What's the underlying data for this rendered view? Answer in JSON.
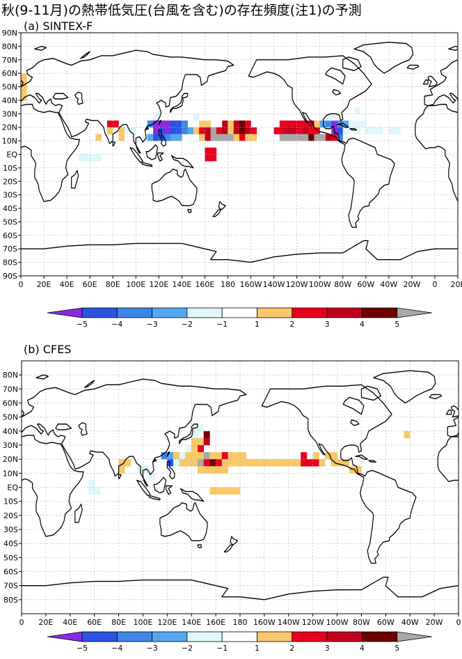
{
  "title": "秋(9-11月)の熱帯低気圧(台風を含む)の存在頻度(注1)の予測",
  "colors": {
    "-5": "#8a2be2",
    "-4": "#2b55e0",
    "-3": "#3f86e8",
    "-2": "#55a8f0",
    "-1": "#dff6fb",
    "1": "#f8c86a",
    "2": "#e8001e",
    "3": "#c0001a",
    "4": "#6e0000",
    "5": "#a8a8a8",
    "land": "#000000",
    "grid": "#b0b0b0"
  },
  "colorbar": {
    "labels": [
      "-5",
      "-4",
      "-3",
      "-2",
      "-1",
      "1",
      "2",
      "3",
      "4",
      "5"
    ],
    "boxes": [
      "-4",
      "-3",
      "-2",
      "-1",
      "0",
      "1",
      "2",
      "3",
      "4"
    ],
    "over": "5",
    "under": "-5"
  },
  "chart_data": [
    {
      "type": "heatmap",
      "panel_label": "(a) SINTEX-F",
      "xticks": [
        "0",
        "20E",
        "40E",
        "60E",
        "80E",
        "100E",
        "120E",
        "140E",
        "160E",
        "180",
        "160W",
        "140W",
        "120W",
        "100W",
        "80W",
        "60W",
        "40W",
        "20W",
        "0",
        "20E"
      ],
      "yticks": [
        "90N",
        "80N",
        "70N",
        "60N",
        "50N",
        "40N",
        "30N",
        "20N",
        "10N",
        "EQ",
        "10S",
        "20S",
        "30S",
        "40S",
        "50S",
        "60S",
        "70S",
        "80S",
        "90S"
      ],
      "xlim": [
        0,
        380
      ],
      "ylim": [
        -90,
        90
      ],
      "cell_deg": 5,
      "cells": [
        [
          0,
          55,
          1
        ],
        [
          0,
          50,
          1
        ],
        [
          0,
          45,
          1
        ],
        [
          0,
          40,
          1
        ],
        [
          75,
          20,
          2
        ],
        [
          80,
          20,
          2
        ],
        [
          75,
          15,
          1
        ],
        [
          85,
          15,
          1
        ],
        [
          65,
          10,
          1
        ],
        [
          85,
          10,
          1
        ],
        [
          90,
          15,
          -1
        ],
        [
          95,
          15,
          -1
        ],
        [
          115,
          25,
          -1
        ],
        [
          110,
          20,
          -3
        ],
        [
          115,
          20,
          -5
        ],
        [
          120,
          20,
          -5
        ],
        [
          125,
          20,
          -5
        ],
        [
          130,
          20,
          -4
        ],
        [
          135,
          20,
          -4
        ],
        [
          140,
          20,
          -3
        ],
        [
          115,
          15,
          -5
        ],
        [
          120,
          15,
          -4
        ],
        [
          125,
          15,
          -5
        ],
        [
          130,
          15,
          -4
        ],
        [
          135,
          15,
          -4
        ],
        [
          140,
          15,
          -3
        ],
        [
          145,
          15,
          -2
        ],
        [
          105,
          10,
          -1
        ],
        [
          110,
          10,
          -2
        ],
        [
          115,
          10,
          -4
        ],
        [
          120,
          10,
          -4
        ],
        [
          125,
          10,
          -3
        ],
        [
          130,
          10,
          -2
        ],
        [
          135,
          10,
          -2
        ],
        [
          150,
          25,
          -1
        ],
        [
          155,
          20,
          1
        ],
        [
          160,
          20,
          1
        ],
        [
          175,
          20,
          3
        ],
        [
          180,
          20,
          1
        ],
        [
          185,
          20,
          3
        ],
        [
          190,
          20,
          4
        ],
        [
          195,
          20,
          2
        ],
        [
          150,
          15,
          1
        ],
        [
          155,
          15,
          2
        ],
        [
          160,
          15,
          3
        ],
        [
          165,
          15,
          5
        ],
        [
          170,
          15,
          2
        ],
        [
          175,
          15,
          3
        ],
        [
          180,
          15,
          1
        ],
        [
          185,
          15,
          3
        ],
        [
          190,
          15,
          4
        ],
        [
          195,
          15,
          3
        ],
        [
          200,
          15,
          2
        ],
        [
          155,
          10,
          1
        ],
        [
          160,
          10,
          3
        ],
        [
          165,
          10,
          5
        ],
        [
          170,
          10,
          5
        ],
        [
          175,
          10,
          5
        ],
        [
          180,
          10,
          5
        ],
        [
          185,
          10,
          1
        ],
        [
          190,
          10,
          2
        ],
        [
          195,
          10,
          1
        ],
        [
          200,
          10,
          1
        ],
        [
          160,
          0,
          2
        ],
        [
          160,
          -5,
          2
        ],
        [
          165,
          -5,
          2
        ],
        [
          165,
          0,
          2
        ],
        [
          50,
          -5,
          -1
        ],
        [
          55,
          -5,
          -1
        ],
        [
          60,
          -5,
          -1
        ],
        [
          65,
          -5,
          -1
        ],
        [
          225,
          20,
          2
        ],
        [
          230,
          20,
          2
        ],
        [
          235,
          20,
          2
        ],
        [
          240,
          20,
          2
        ],
        [
          245,
          20,
          2
        ],
        [
          250,
          20,
          3
        ],
        [
          220,
          15,
          2
        ],
        [
          225,
          15,
          2
        ],
        [
          230,
          15,
          3
        ],
        [
          235,
          15,
          3
        ],
        [
          240,
          15,
          2
        ],
        [
          245,
          15,
          3
        ],
        [
          250,
          15,
          2
        ],
        [
          255,
          15,
          2
        ],
        [
          225,
          10,
          5
        ],
        [
          230,
          10,
          5
        ],
        [
          235,
          10,
          5
        ],
        [
          240,
          10,
          5
        ],
        [
          245,
          10,
          5
        ],
        [
          250,
          10,
          4
        ],
        [
          255,
          10,
          5
        ],
        [
          260,
          10,
          5
        ],
        [
          255,
          20,
          1
        ],
        [
          260,
          20,
          -2
        ],
        [
          265,
          20,
          -3
        ],
        [
          270,
          20,
          -5
        ],
        [
          275,
          20,
          -3
        ],
        [
          280,
          20,
          -2
        ],
        [
          285,
          20,
          -1
        ],
        [
          290,
          20,
          -1
        ],
        [
          295,
          20,
          -1
        ],
        [
          265,
          25,
          -1
        ],
        [
          270,
          25,
          -1
        ],
        [
          290,
          30,
          -1
        ],
        [
          270,
          15,
          -5
        ],
        [
          275,
          15,
          -4
        ],
        [
          280,
          15,
          -1
        ],
        [
          290,
          15,
          -1
        ],
        [
          300,
          15,
          -1
        ],
        [
          305,
          15,
          -1
        ],
        [
          310,
          15,
          -1
        ],
        [
          265,
          10,
          3
        ],
        [
          270,
          10,
          2
        ],
        [
          275,
          10,
          -3
        ],
        [
          320,
          15,
          -1
        ],
        [
          325,
          15,
          -1
        ]
      ]
    },
    {
      "type": "heatmap",
      "panel_label": "(b) CFES",
      "xticks": [
        "0",
        "20E",
        "40E",
        "60E",
        "80E",
        "100E",
        "120E",
        "140E",
        "160E",
        "180",
        "160W",
        "140W",
        "120W",
        "100W",
        "80W",
        "60W",
        "40W",
        "20W",
        "0"
      ],
      "yticks": [
        "80N",
        "70N",
        "60N",
        "50N",
        "40N",
        "30N",
        "20N",
        "10N",
        "EQ",
        "10S",
        "20S",
        "30S",
        "40S",
        "50S",
        "60S",
        "70S",
        "80S"
      ],
      "xlim": [
        0,
        360
      ],
      "ylim": [
        -90,
        90
      ],
      "cell_deg": 5,
      "cells": [
        [
          140,
          35,
          -1
        ],
        [
          145,
          40,
          -1
        ],
        [
          145,
          30,
          1
        ],
        [
          140,
          30,
          1
        ],
        [
          150,
          35,
          4
        ],
        [
          150,
          30,
          3
        ],
        [
          145,
          25,
          2
        ],
        [
          135,
          25,
          -1
        ],
        [
          140,
          25,
          1
        ],
        [
          145,
          20,
          1
        ],
        [
          150,
          20,
          5
        ],
        [
          155,
          20,
          1
        ],
        [
          160,
          20,
          1
        ],
        [
          165,
          20,
          2
        ],
        [
          170,
          20,
          1
        ],
        [
          175,
          20,
          1
        ],
        [
          180,
          20,
          1
        ],
        [
          115,
          20,
          -3
        ],
        [
          120,
          20,
          -2
        ],
        [
          125,
          20,
          1
        ],
        [
          130,
          20,
          -1
        ],
        [
          135,
          20,
          1
        ],
        [
          140,
          20,
          1
        ],
        [
          120,
          15,
          -4
        ],
        [
          125,
          15,
          -1
        ],
        [
          130,
          15,
          1
        ],
        [
          135,
          15,
          1
        ],
        [
          140,
          15,
          1
        ],
        [
          145,
          15,
          5
        ],
        [
          150,
          15,
          2
        ],
        [
          155,
          15,
          4
        ],
        [
          160,
          15,
          2
        ],
        [
          165,
          15,
          1
        ],
        [
          170,
          15,
          1
        ],
        [
          175,
          15,
          1
        ],
        [
          180,
          15,
          1
        ],
        [
          185,
          15,
          1
        ],
        [
          190,
          15,
          1
        ],
        [
          195,
          15,
          1
        ],
        [
          200,
          15,
          1
        ],
        [
          145,
          10,
          1
        ],
        [
          150,
          10,
          1
        ],
        [
          155,
          10,
          1
        ],
        [
          160,
          10,
          1
        ],
        [
          165,
          10,
          1
        ],
        [
          80,
          15,
          1
        ],
        [
          85,
          15,
          1
        ],
        [
          80,
          10,
          1
        ],
        [
          95,
          10,
          -1
        ],
        [
          100,
          10,
          -1
        ],
        [
          105,
          5,
          -1
        ],
        [
          155,
          -5,
          1
        ],
        [
          160,
          -5,
          1
        ],
        [
          165,
          -5,
          1
        ],
        [
          170,
          -5,
          1
        ],
        [
          175,
          -5,
          1
        ],
        [
          55,
          -5,
          -1
        ],
        [
          60,
          -5,
          -1
        ],
        [
          55,
          0,
          -1
        ],
        [
          205,
          15,
          1
        ],
        [
          210,
          15,
          1
        ],
        [
          215,
          15,
          1
        ],
        [
          220,
          15,
          1
        ],
        [
          225,
          15,
          1
        ],
        [
          230,
          15,
          2
        ],
        [
          235,
          15,
          2
        ],
        [
          240,
          15,
          2
        ],
        [
          245,
          15,
          1
        ],
        [
          230,
          20,
          2
        ],
        [
          240,
          20,
          1
        ],
        [
          250,
          20,
          1
        ],
        [
          255,
          20,
          1
        ],
        [
          255,
          15,
          1
        ],
        [
          260,
          15,
          1
        ],
        [
          265,
          15,
          1
        ],
        [
          270,
          10,
          1
        ],
        [
          275,
          10,
          1
        ],
        [
          315,
          35,
          1
        ]
      ]
    }
  ]
}
